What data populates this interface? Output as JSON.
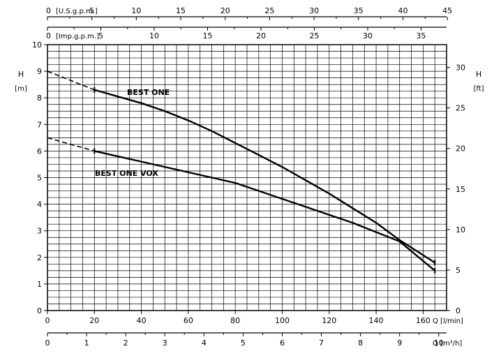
{
  "chart_data": {
    "type": "line",
    "grid": true,
    "axes": {
      "left": {
        "symbol": "H",
        "unit": "[m]",
        "range": [
          0,
          10
        ],
        "ticks": [
          "0",
          "1",
          "2",
          "3",
          "4",
          "5",
          "6",
          "7",
          "8",
          "9",
          "10"
        ]
      },
      "right": {
        "symbol": "H",
        "unit": "[ft]",
        "range": [
          0,
          32.8084
        ],
        "ticks": [
          "0",
          "5",
          "10",
          "15",
          "20",
          "25",
          "30"
        ]
      },
      "bottom_primary": {
        "label": "Q [l/min]",
        "range": [
          0,
          170
        ],
        "ticks": [
          "0",
          "20",
          "40",
          "60",
          "80",
          "100",
          "120",
          "140",
          "160"
        ]
      },
      "bottom_secondary": {
        "label": "Q [m³/h]",
        "range": [
          0,
          10.2
        ],
        "ticks": [
          "0",
          "1",
          "2",
          "3",
          "4",
          "5",
          "6",
          "7",
          "8",
          "9",
          "10"
        ]
      },
      "top_primary": {
        "label": "[U.S.g.p.m.]",
        "range": [
          0,
          44.91
        ],
        "ticks": [
          "0",
          "5",
          "10",
          "15",
          "20",
          "25",
          "30",
          "35",
          "40",
          "45"
        ]
      },
      "top_secondary": {
        "label": "[Imp.g.p.m.]",
        "range": [
          0,
          37.39
        ],
        "ticks": [
          "0",
          "5",
          "10",
          "15",
          "20",
          "25",
          "30",
          "35"
        ]
      }
    },
    "series": [
      {
        "name": "BEST ONE",
        "unit_x": "l/min",
        "unit_y": "m",
        "x": [
          20,
          30,
          40,
          50,
          60,
          70,
          80,
          90,
          100,
          110,
          120,
          130,
          140,
          150,
          165
        ],
        "y": [
          8.3,
          8.05,
          7.8,
          7.5,
          7.15,
          6.75,
          6.3,
          5.85,
          5.4,
          4.9,
          4.4,
          3.85,
          3.3,
          2.65,
          1.8
        ],
        "extrapolated_x": [
          0,
          20
        ],
        "extrapolated_y": [
          9.0,
          8.3
        ]
      },
      {
        "name": "BEST ONE VOX",
        "unit_x": "l/min",
        "unit_y": "m",
        "x": [
          20,
          30,
          40,
          50,
          60,
          70,
          80,
          90,
          100,
          110,
          120,
          130,
          140,
          150,
          165
        ],
        "y": [
          6.0,
          5.8,
          5.6,
          5.4,
          5.2,
          5.0,
          4.8,
          4.5,
          4.2,
          3.9,
          3.6,
          3.3,
          2.95,
          2.6,
          1.5
        ],
        "extrapolated_x": [
          0,
          20
        ],
        "extrapolated_y": [
          6.5,
          6.0
        ]
      }
    ]
  }
}
